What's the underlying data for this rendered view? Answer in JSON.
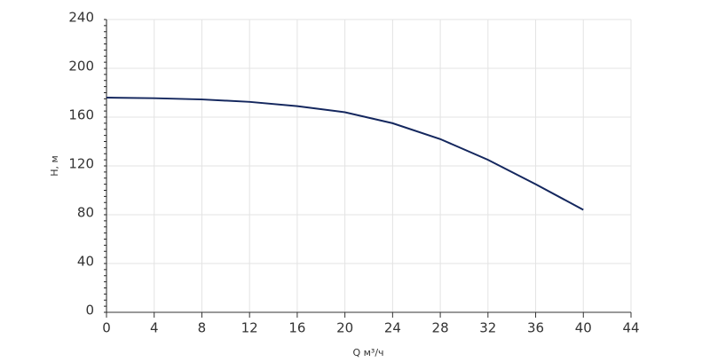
{
  "chart_data": {
    "type": "line",
    "x_label": "Q м³/ч",
    "y_label": "H, м",
    "x": [
      0,
      4,
      8,
      12,
      16,
      20,
      24,
      28,
      32,
      36,
      40
    ],
    "series": [
      {
        "color": "#14275e",
        "values": [
          176,
          175.5,
          174.5,
          172.5,
          169,
          164,
          155,
          142,
          125,
          105,
          84
        ]
      }
    ],
    "xlim": [
      0,
      44
    ],
    "xticks": [
      0,
      4,
      8,
      12,
      16,
      20,
      24,
      28,
      32,
      36,
      40,
      44
    ],
    "ylim": [
      0,
      240
    ],
    "yticks": [
      0,
      40,
      80,
      120,
      160,
      200,
      240
    ],
    "grid": true
  }
}
